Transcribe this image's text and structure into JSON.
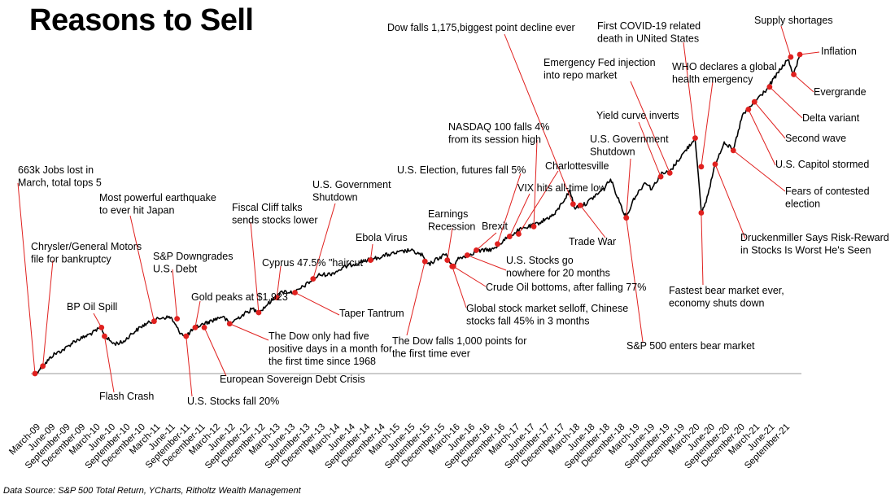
{
  "chart_data": {
    "type": "line",
    "title": "Reasons to Sell",
    "source": "Data Source: S&P 500 Total Return, YCharts, Ritholtz Wealth Management",
    "xlabel": "",
    "ylabel": "",
    "grid": false,
    "x_ticks": [
      "March-09",
      "June-09",
      "September-09",
      "December-09",
      "March-10",
      "June-10",
      "September-10",
      "December-10",
      "March-11",
      "June-11",
      "September-11",
      "December-11",
      "March-12",
      "June-12",
      "September-12",
      "December-12",
      "March-13",
      "June-13",
      "September-13",
      "December-13",
      "March-14",
      "June-14",
      "September-14",
      "December-14",
      "March-15",
      "June-15",
      "September-15",
      "December-15",
      "March-16",
      "June-16",
      "September-16",
      "December-16",
      "March-17",
      "June-17",
      "September-17",
      "December-17",
      "March-18",
      "June-18",
      "September-18",
      "December-18",
      "March-19",
      "June-19",
      "September-19",
      "December-19",
      "March-20",
      "June-20",
      "September-20",
      "December-20",
      "March-21",
      "June-21",
      "September-21"
    ],
    "series": [
      {
        "values": [
          [
            2009.2,
            0
          ],
          [
            2009.33,
            0.3
          ],
          [
            2009.5,
            0.75
          ],
          [
            2009.7,
            1.0
          ],
          [
            2009.85,
            1.3
          ],
          [
            2010.0,
            1.45
          ],
          [
            2010.2,
            1.7
          ],
          [
            2010.3,
            1.85
          ],
          [
            2010.35,
            1.5
          ],
          [
            2010.5,
            1.2
          ],
          [
            2010.65,
            1.25
          ],
          [
            2010.8,
            1.6
          ],
          [
            2011.0,
            1.95
          ],
          [
            2011.3,
            2.25
          ],
          [
            2011.45,
            2.25
          ],
          [
            2011.58,
            1.7
          ],
          [
            2011.7,
            1.5
          ],
          [
            2011.85,
            1.85
          ],
          [
            2012.0,
            2.0
          ],
          [
            2012.3,
            2.3
          ],
          [
            2012.42,
            2.0
          ],
          [
            2012.6,
            2.3
          ],
          [
            2012.8,
            2.6
          ],
          [
            2012.9,
            2.45
          ],
          [
            2013.1,
            2.9
          ],
          [
            2013.3,
            3.3
          ],
          [
            2013.5,
            3.25
          ],
          [
            2013.7,
            3.6
          ],
          [
            2013.9,
            3.95
          ],
          [
            2014.1,
            4.0
          ],
          [
            2014.35,
            4.3
          ],
          [
            2014.6,
            4.5
          ],
          [
            2014.8,
            4.6
          ],
          [
            2015.0,
            4.75
          ],
          [
            2015.4,
            4.95
          ],
          [
            2015.6,
            4.75
          ],
          [
            2015.7,
            4.35
          ],
          [
            2015.85,
            4.6
          ],
          [
            2016.0,
            4.8
          ],
          [
            2016.1,
            4.25
          ],
          [
            2016.2,
            4.6
          ],
          [
            2016.5,
            4.9
          ],
          [
            2016.8,
            5.0
          ],
          [
            2016.95,
            5.35
          ],
          [
            2017.2,
            5.75
          ],
          [
            2017.5,
            6.0
          ],
          [
            2017.8,
            6.4
          ],
          [
            2018.05,
            7.35
          ],
          [
            2018.12,
            6.65
          ],
          [
            2018.3,
            6.8
          ],
          [
            2018.6,
            7.4
          ],
          [
            2018.72,
            7.8
          ],
          [
            2018.85,
            7.0
          ],
          [
            2018.98,
            6.25
          ],
          [
            2019.1,
            7.0
          ],
          [
            2019.3,
            7.7
          ],
          [
            2019.4,
            7.4
          ],
          [
            2019.55,
            8.0
          ],
          [
            2019.7,
            8.1
          ],
          [
            2019.85,
            8.6
          ],
          [
            2020.12,
            9.45
          ],
          [
            2020.22,
            6.45
          ],
          [
            2020.3,
            6.9
          ],
          [
            2020.45,
            8.4
          ],
          [
            2020.6,
            9.3
          ],
          [
            2020.75,
            8.95
          ],
          [
            2020.9,
            10.35
          ],
          [
            2021.1,
            10.9
          ],
          [
            2021.3,
            11.4
          ],
          [
            2021.5,
            12.1
          ],
          [
            2021.65,
            12.6
          ],
          [
            2021.75,
            12.0
          ],
          [
            2021.85,
            12.8
          ]
        ]
      }
    ],
    "annotations": [
      {
        "lines": [
          "663k Jobs lost in",
          "March, total tops 5"
        ],
        "x": 2009.2,
        "y": 0
      },
      {
        "lines": [
          "Chrysler/General Motors",
          "file for bankruptcy"
        ],
        "x": 2009.33,
        "y": 0.3
      },
      {
        "lines": [
          "BP Oil Spill"
        ],
        "x": 2010.3,
        "y": 1.85
      },
      {
        "lines": [
          "Flash Crash"
        ],
        "x": 2010.35,
        "y": 1.5
      },
      {
        "lines": [
          "Most powerful earthquake",
          "to ever hit Japan"
        ],
        "x": 2011.17,
        "y": 2.1
      },
      {
        "lines": [
          "S&P Downgrades",
          "U.S. Debt"
        ],
        "x": 2011.55,
        "y": 2.2
      },
      {
        "lines": [
          "U.S. Stocks fall 20%"
        ],
        "x": 2011.7,
        "y": 1.5
      },
      {
        "lines": [
          "Gold peaks at $1,923"
        ],
        "x": 2011.85,
        "y": 1.85
      },
      {
        "lines": [
          "European Sovereign Debt Crisis"
        ],
        "x": 2012.0,
        "y": 1.85
      },
      {
        "lines": [
          "Fiscal Cliff talks",
          "sends stocks lower"
        ],
        "x": 2012.9,
        "y": 2.45
      },
      {
        "lines": [
          "The Dow only had five",
          "positive days in a month for",
          "the first time since 1968"
        ],
        "x": 2012.42,
        "y": 2.0
      },
      {
        "lines": [
          "Cyprus 47.5% \"haircut\""
        ],
        "x": 2013.2,
        "y": 3.05
      },
      {
        "lines": [
          "U.S. Government",
          "Shutdown"
        ],
        "x": 2013.8,
        "y": 3.8
      },
      {
        "lines": [
          "Taper Tantrum"
        ],
        "x": 2013.5,
        "y": 3.25
      },
      {
        "lines": [
          "Ebola Virus"
        ],
        "x": 2014.75,
        "y": 4.55
      },
      {
        "lines": [
          "The Dow falls 1,000 points for",
          "the first time ever"
        ],
        "x": 2015.65,
        "y": 4.5
      },
      {
        "lines": [
          "Earnings",
          "Recession"
        ],
        "x": 2016.02,
        "y": 4.55
      },
      {
        "lines": [
          "Global stock market selloff, Chinese",
          "stocks fall 45% in 3 months"
        ],
        "x": 2016.1,
        "y": 4.3
      },
      {
        "lines": [
          "Crude Oil bottoms, after falling 77%"
        ],
        "x": 2016.12,
        "y": 4.3
      },
      {
        "lines": [
          "U.S. Stocks go",
          "nowhere for 20 months"
        ],
        "x": 2016.35,
        "y": 4.75
      },
      {
        "lines": [
          "Brexit"
        ],
        "x": 2016.5,
        "y": 4.95
      },
      {
        "lines": [
          "U.S. Election, futures fall 5%"
        ],
        "x": 2016.85,
        "y": 5.2
      },
      {
        "lines": [
          "VIX hits all-time low"
        ],
        "x": 2017.05,
        "y": 5.5
      },
      {
        "lines": [
          "Charlottesville"
        ],
        "x": 2017.2,
        "y": 5.6
      },
      {
        "lines": [
          "NASDAQ 100 falls 4%",
          "from its  session high"
        ],
        "x": 2017.45,
        "y": 5.9
      },
      {
        "lines": [
          "Dow falls 1,175,biggest point decline ever"
        ],
        "x": 2018.1,
        "y": 6.8
      },
      {
        "lines": [
          "Trade War"
        ],
        "x": 2018.22,
        "y": 6.75
      },
      {
        "lines": [
          "Emergency Fed injection",
          "into repo market"
        ],
        "x": 2019.7,
        "y": 8.05
      },
      {
        "lines": [
          "U.S. Government",
          "Shutdown"
        ],
        "x": 2018.98,
        "y": 6.25
      },
      {
        "lines": [
          "Yield curve inverts"
        ],
        "x": 2019.55,
        "y": 7.9
      },
      {
        "lines": [
          "S&P 500 enters bear market"
        ],
        "x": 2018.98,
        "y": 6.25
      },
      {
        "lines": [
          "First COVID-19 related",
          "death in UNited States"
        ],
        "x": 2020.12,
        "y": 9.45
      },
      {
        "lines": [
          "WHO declares a global",
          "health emergency"
        ],
        "x": 2020.22,
        "y": 8.3
      },
      {
        "lines": [
          "Fastest bear market ever,",
          "economy shuts down"
        ],
        "x": 2020.22,
        "y": 6.45
      },
      {
        "lines": [
          "Druckenmiller Says Risk-Reward",
          "in Stocks Is Worst He's Seen"
        ],
        "x": 2020.45,
        "y": 8.4
      },
      {
        "lines": [
          "Fears of contested",
          "election"
        ],
        "x": 2020.75,
        "y": 8.95
      },
      {
        "lines": [
          "U.S. Capitol stormed"
        ],
        "x": 2021.0,
        "y": 10.6
      },
      {
        "lines": [
          "Second wave"
        ],
        "x": 2021.1,
        "y": 10.9
      },
      {
        "lines": [
          "Delta variant"
        ],
        "x": 2021.35,
        "y": 11.5
      },
      {
        "lines": [
          "Supply shortages"
        ],
        "x": 2021.7,
        "y": 12.7
      },
      {
        "lines": [
          "Inflation"
        ],
        "x": 2021.85,
        "y": 12.8
      },
      {
        "lines": [
          "Evergrande"
        ],
        "x": 2021.75,
        "y": 12.0
      }
    ]
  }
}
